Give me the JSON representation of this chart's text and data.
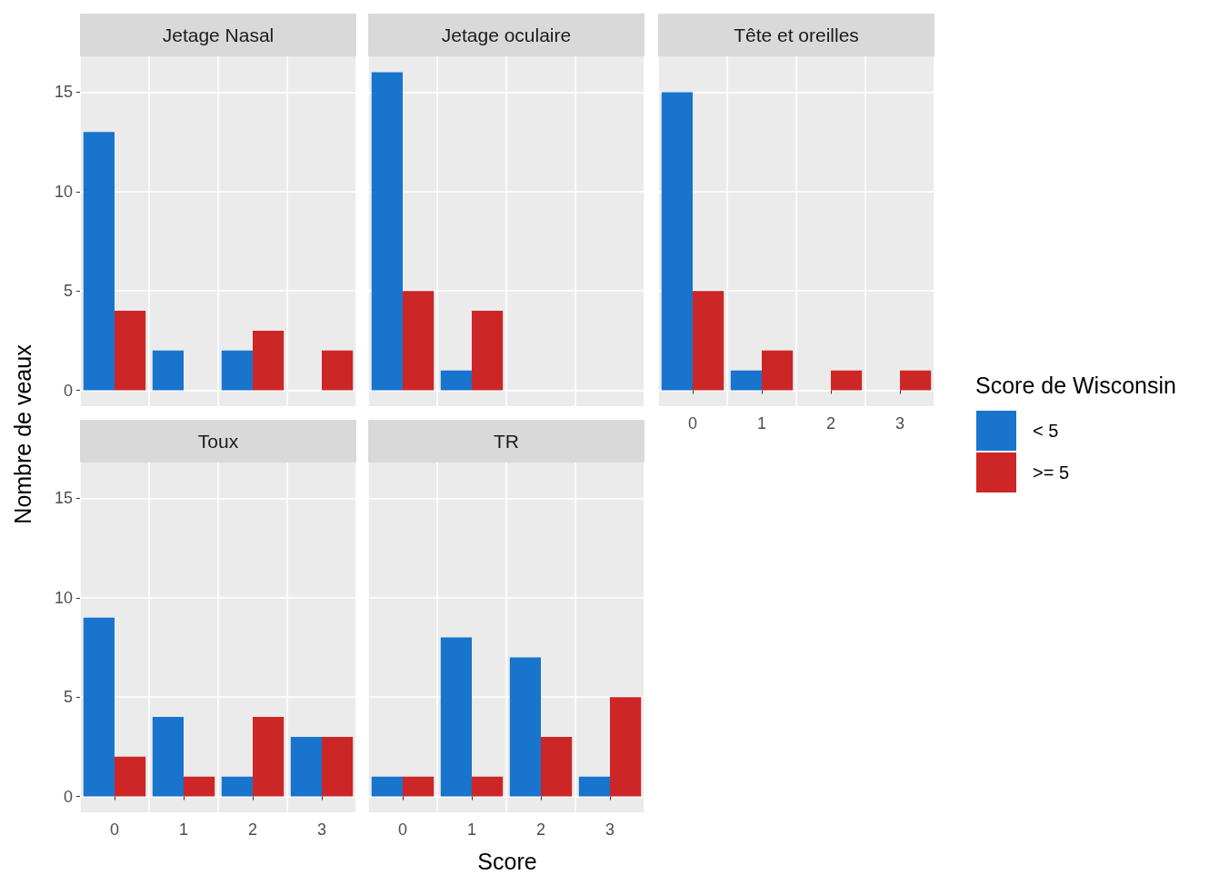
{
  "chart_data": [
    {
      "type": "bar",
      "title": "Jetage Nasal",
      "ylabel": "Nombre de veaux",
      "legend_title": "Score de Wisconsin",
      "legend": "right",
      "categories": [
        "0",
        "1",
        "2",
        "3"
      ],
      "ylim": [
        -0.8,
        16.8
      ],
      "yticks": [
        0,
        5,
        10,
        15
      ],
      "grid": true,
      "tick_labels": "y",
      "series": [
        {
          "name": "< 5",
          "color": "#1874cd",
          "values": [
            13,
            2,
            2,
            null
          ]
        },
        {
          "name": ">= 5",
          "color": "#cd2626",
          "values": [
            4,
            null,
            3,
            2
          ]
        }
      ]
    },
    {
      "type": "bar",
      "title": "Jetage oculaire",
      "categories": [
        "0",
        "1",
        "2",
        "3"
      ],
      "ylim": [
        -0.8,
        16.8
      ],
      "yticks": [
        0,
        5,
        10,
        15
      ],
      "grid": true,
      "tick_labels": false,
      "series": [
        {
          "color": "#1874cd",
          "values": [
            16,
            1,
            null,
            null
          ]
        },
        {
          "color": "#cd2626",
          "values": [
            5,
            4,
            null,
            null
          ]
        }
      ]
    },
    {
      "type": "bar",
      "title": "Tête et oreilles",
      "categories": [
        "0",
        "1",
        "2",
        "3"
      ],
      "ylim": [
        -0.8,
        16.8
      ],
      "yticks": [
        0,
        5,
        10,
        15
      ],
      "grid": true,
      "tick_labels": "x",
      "series": [
        {
          "color": "#1874cd",
          "values": [
            15,
            1,
            null,
            null
          ]
        },
        {
          "color": "#cd2626",
          "values": [
            5,
            2,
            1,
            1
          ]
        }
      ]
    },
    {
      "type": "bar",
      "title": "Toux",
      "categories": [
        "0",
        "1",
        "2",
        "3"
      ],
      "ylim": [
        -0.8,
        16.8
      ],
      "yticks": [
        0,
        5,
        10,
        15
      ],
      "grid": true,
      "series": [
        {
          "color": "#1874cd",
          "values": [
            9,
            4,
            1,
            3
          ]
        },
        {
          "color": "#cd2626",
          "values": [
            2,
            1,
            4,
            3
          ]
        }
      ]
    },
    {
      "type": "bar",
      "title": "TR",
      "xlabel": "Score",
      "categories": [
        "0",
        "1",
        "2",
        "3"
      ],
      "ylim": [
        -0.8,
        16.8
      ],
      "yticks": [
        0,
        5,
        10,
        15
      ],
      "grid": true,
      "tick_labels": "x",
      "series": [
        {
          "color": "#1874cd",
          "values": [
            1,
            8,
            7,
            1
          ]
        },
        {
          "color": "#cd2626",
          "values": [
            1,
            1,
            3,
            5
          ]
        }
      ]
    }
  ]
}
